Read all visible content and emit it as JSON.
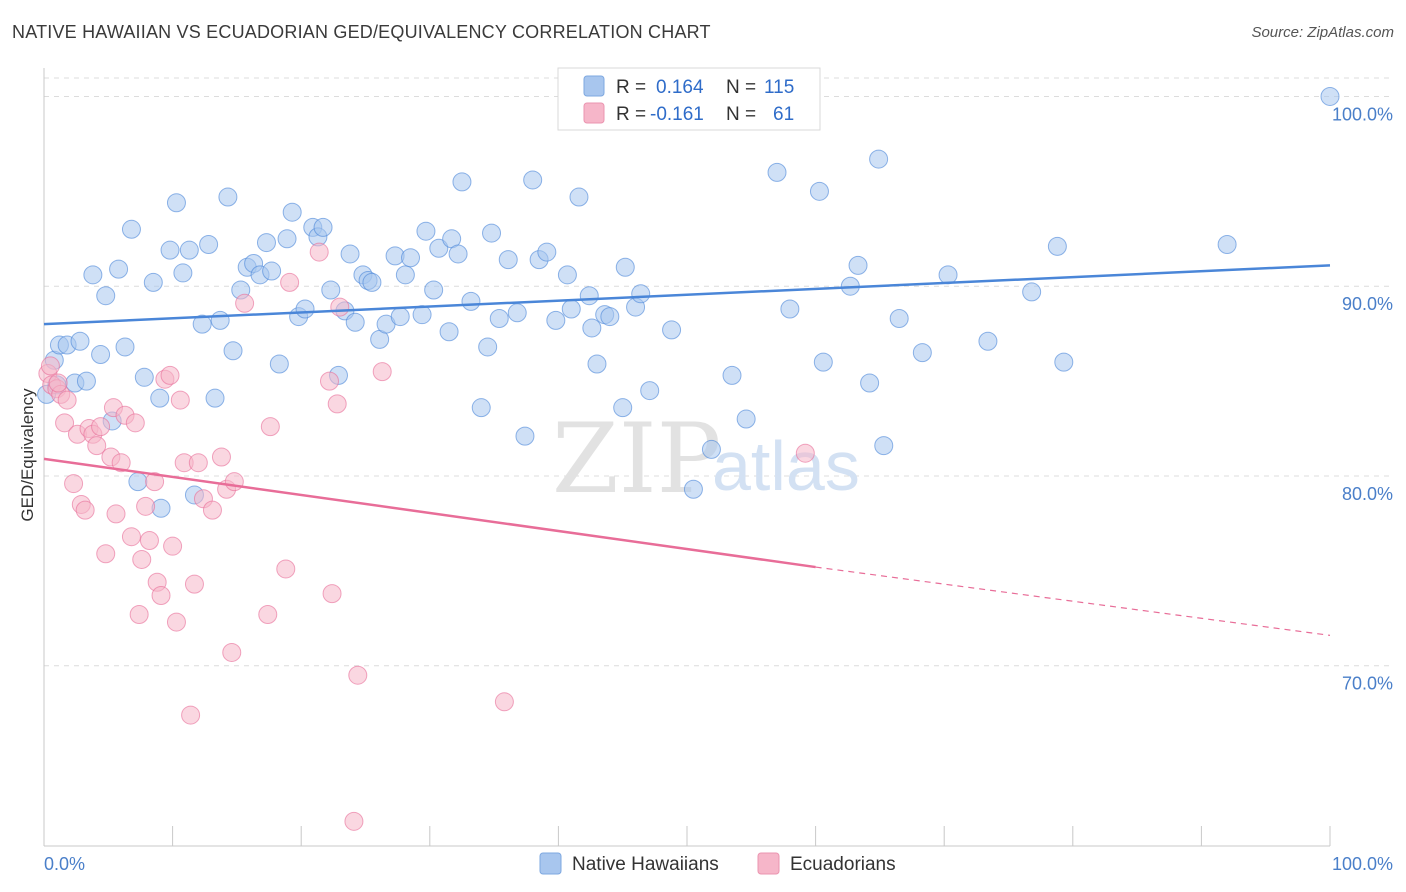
{
  "header": {
    "title": "NATIVE HAWAIIAN VS ECUADORIAN GED/EQUIVALENCY CORRELATION CHART",
    "source": "Source: ZipAtlas.com"
  },
  "watermark": {
    "zip": "ZIP",
    "atlas": "atlas"
  },
  "legend_top": {
    "rows": [
      {
        "r_label": "R =",
        "r_value": "0.164",
        "n_label": "N =",
        "n_value": "115",
        "color": "#a8c6ee"
      },
      {
        "r_label": "R =",
        "r_value": "-0.161",
        "n_label": "N =",
        "n_value": "61",
        "color": "#f6b6c9"
      }
    ]
  },
  "legend_bottom": {
    "items": [
      {
        "label": "Native Hawaiians",
        "color": "#a8c6ee"
      },
      {
        "label": "Ecuadorians",
        "color": "#f6b6c9"
      }
    ]
  },
  "chart_data": {
    "type": "scatter",
    "title": "NATIVE HAWAIIAN VS ECUADORIAN GED/EQUIVALENCY CORRELATION CHART",
    "xlabel": "",
    "ylabel": "GED/Equivalency",
    "xlim": [
      0,
      100
    ],
    "ylim": [
      60.5,
      101.5
    ],
    "x_tick_labels": [
      "0.0%",
      "100.0%"
    ],
    "y_ticks": [
      70,
      80,
      90,
      100
    ],
    "y_tick_labels": [
      "70.0%",
      "80.0%",
      "90.0%",
      "100.0%"
    ],
    "grid": true,
    "legend_position": "top-center",
    "series": [
      {
        "name": "Native Hawaiians",
        "color": "#4a86d8",
        "fill": "#a8c6ee",
        "trend": {
          "x": [
            0,
            100
          ],
          "y": [
            88.0,
            91.1
          ]
        },
        "points": [
          [
            0.2,
            84.3
          ],
          [
            0.8,
            86.1
          ],
          [
            1.0,
            84.8
          ],
          [
            1.2,
            86.9
          ],
          [
            1.8,
            86.9
          ],
          [
            2.4,
            84.9
          ],
          [
            2.8,
            87.1
          ],
          [
            3.3,
            85.0
          ],
          [
            3.8,
            90.6
          ],
          [
            4.4,
            86.4
          ],
          [
            4.8,
            89.5
          ],
          [
            5.3,
            82.9
          ],
          [
            5.8,
            90.9
          ],
          [
            6.3,
            86.8
          ],
          [
            6.8,
            93.0
          ],
          [
            7.3,
            79.7
          ],
          [
            7.8,
            85.2
          ],
          [
            8.5,
            90.2
          ],
          [
            9.0,
            84.1
          ],
          [
            9.1,
            78.3
          ],
          [
            9.8,
            91.9
          ],
          [
            10.3,
            94.4
          ],
          [
            10.8,
            90.7
          ],
          [
            11.3,
            91.9
          ],
          [
            11.7,
            79.0
          ],
          [
            12.3,
            88.0
          ],
          [
            12.8,
            92.2
          ],
          [
            13.3,
            84.1
          ],
          [
            13.7,
            88.2
          ],
          [
            14.3,
            94.7
          ],
          [
            14.7,
            86.6
          ],
          [
            15.3,
            89.8
          ],
          [
            15.8,
            91.0
          ],
          [
            16.3,
            91.2
          ],
          [
            16.8,
            90.6
          ],
          [
            17.3,
            92.3
          ],
          [
            17.7,
            90.8
          ],
          [
            18.3,
            85.9
          ],
          [
            18.9,
            92.5
          ],
          [
            19.3,
            93.9
          ],
          [
            19.8,
            88.4
          ],
          [
            20.3,
            88.8
          ],
          [
            20.9,
            93.1
          ],
          [
            21.3,
            92.6
          ],
          [
            21.7,
            93.1
          ],
          [
            22.3,
            89.8
          ],
          [
            22.9,
            85.3
          ],
          [
            23.4,
            88.7
          ],
          [
            23.8,
            91.7
          ],
          [
            24.2,
            88.1
          ],
          [
            24.8,
            90.6
          ],
          [
            25.2,
            90.3
          ],
          [
            25.5,
            90.2
          ],
          [
            26.1,
            87.2
          ],
          [
            26.6,
            88.0
          ],
          [
            27.3,
            91.6
          ],
          [
            27.7,
            88.4
          ],
          [
            28.1,
            90.6
          ],
          [
            28.5,
            91.5
          ],
          [
            29.4,
            88.5
          ],
          [
            29.7,
            92.9
          ],
          [
            30.3,
            89.8
          ],
          [
            30.7,
            92.0
          ],
          [
            31.5,
            87.6
          ],
          [
            31.7,
            92.5
          ],
          [
            32.2,
            91.7
          ],
          [
            32.5,
            95.5
          ],
          [
            33.2,
            89.2
          ],
          [
            34.0,
            83.6
          ],
          [
            34.8,
            92.8
          ],
          [
            34.5,
            86.8
          ],
          [
            35.4,
            88.3
          ],
          [
            36.1,
            91.4
          ],
          [
            36.8,
            88.6
          ],
          [
            37.4,
            82.1
          ],
          [
            38.0,
            95.6
          ],
          [
            38.5,
            91.4
          ],
          [
            39.1,
            91.8
          ],
          [
            39.8,
            88.2
          ],
          [
            40.7,
            90.6
          ],
          [
            41.0,
            88.8
          ],
          [
            41.6,
            94.7
          ],
          [
            42.4,
            89.5
          ],
          [
            42.6,
            87.8
          ],
          [
            43.0,
            85.9
          ],
          [
            43.6,
            88.5
          ],
          [
            44.0,
            88.4
          ],
          [
            45.0,
            83.6
          ],
          [
            45.2,
            91.0
          ],
          [
            46.0,
            88.9
          ],
          [
            46.4,
            89.6
          ],
          [
            47.1,
            84.5
          ],
          [
            48.8,
            87.7
          ],
          [
            50.5,
            79.3
          ],
          [
            51.9,
            81.4
          ],
          [
            53.5,
            85.3
          ],
          [
            54.6,
            83.0
          ],
          [
            57.0,
            96.0
          ],
          [
            58.0,
            88.8
          ],
          [
            59.3,
            100.0
          ],
          [
            60.3,
            95.0
          ],
          [
            60.6,
            86.0
          ],
          [
            62.7,
            90.0
          ],
          [
            63.3,
            91.1
          ],
          [
            64.2,
            84.9
          ],
          [
            64.9,
            96.7
          ],
          [
            65.3,
            81.6
          ],
          [
            66.5,
            88.3
          ],
          [
            68.3,
            86.5
          ],
          [
            70.3,
            90.6
          ],
          [
            73.4,
            87.1
          ],
          [
            76.8,
            89.7
          ],
          [
            78.8,
            92.1
          ],
          [
            79.3,
            86.0
          ],
          [
            92.0,
            92.2
          ],
          [
            100.0,
            100.0
          ]
        ]
      },
      {
        "name": "Ecuadorians",
        "color": "#e86d98",
        "fill": "#f6b6c9",
        "trend": {
          "x": [
            0,
            60
          ],
          "y": [
            80.9,
            75.2
          ]
        },
        "trend_dashed": {
          "x": [
            60,
            100
          ],
          "y": [
            75.2,
            71.6
          ]
        },
        "points": [
          [
            0.3,
            85.4
          ],
          [
            0.6,
            84.8
          ],
          [
            1.0,
            84.6
          ],
          [
            1.3,
            84.3
          ],
          [
            1.6,
            82.8
          ],
          [
            1.8,
            84.0
          ],
          [
            2.3,
            79.6
          ],
          [
            2.6,
            82.2
          ],
          [
            2.9,
            78.5
          ],
          [
            3.2,
            78.2
          ],
          [
            3.5,
            82.5
          ],
          [
            3.8,
            82.2
          ],
          [
            4.1,
            81.6
          ],
          [
            4.4,
            82.6
          ],
          [
            4.8,
            75.9
          ],
          [
            5.2,
            81.0
          ],
          [
            5.4,
            83.6
          ],
          [
            5.6,
            78.0
          ],
          [
            6.0,
            80.7
          ],
          [
            6.3,
            83.2
          ],
          [
            6.8,
            76.8
          ],
          [
            7.1,
            82.8
          ],
          [
            7.4,
            72.7
          ],
          [
            7.6,
            75.6
          ],
          [
            7.9,
            78.4
          ],
          [
            8.2,
            76.6
          ],
          [
            8.6,
            79.7
          ],
          [
            8.8,
            74.4
          ],
          [
            9.1,
            73.7
          ],
          [
            9.4,
            85.1
          ],
          [
            9.8,
            85.3
          ],
          [
            10.0,
            76.3
          ],
          [
            10.3,
            72.3
          ],
          [
            10.6,
            84.0
          ],
          [
            10.9,
            80.7
          ],
          [
            11.4,
            67.4
          ],
          [
            11.7,
            74.3
          ],
          [
            12.0,
            80.7
          ],
          [
            12.4,
            78.8
          ],
          [
            13.1,
            78.2
          ],
          [
            13.8,
            81.0
          ],
          [
            14.2,
            79.3
          ],
          [
            14.6,
            70.7
          ],
          [
            14.8,
            79.7
          ],
          [
            15.6,
            89.1
          ],
          [
            17.4,
            72.7
          ],
          [
            17.6,
            82.6
          ],
          [
            18.8,
            75.1
          ],
          [
            19.1,
            90.2
          ],
          [
            21.4,
            91.8
          ],
          [
            22.2,
            85.0
          ],
          [
            22.4,
            73.8
          ],
          [
            22.8,
            83.8
          ],
          [
            23.0,
            88.9
          ],
          [
            24.1,
            61.8
          ],
          [
            24.4,
            69.5
          ],
          [
            26.3,
            85.5
          ],
          [
            35.8,
            68.1
          ],
          [
            59.2,
            81.2
          ],
          [
            0.5,
            85.8
          ],
          [
            1.1,
            84.9
          ]
        ]
      }
    ]
  }
}
